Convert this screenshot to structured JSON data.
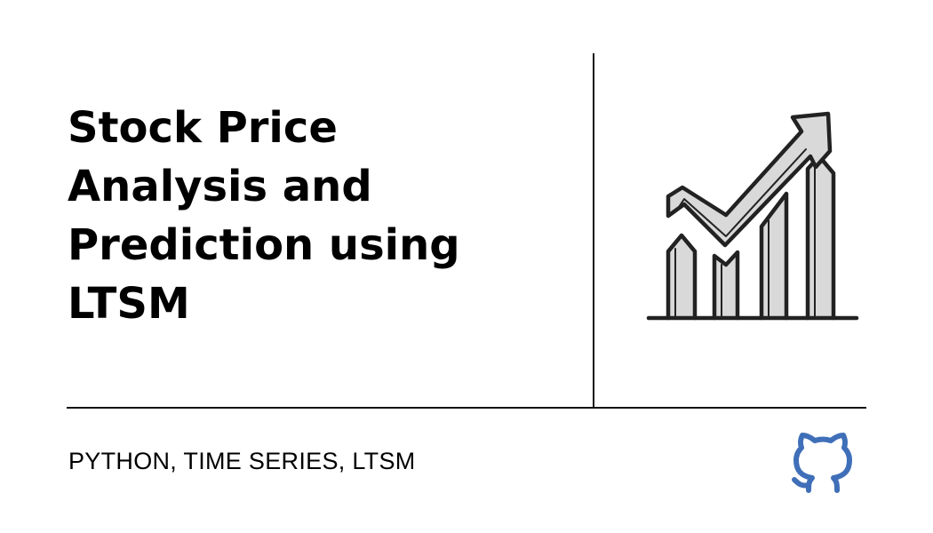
{
  "title": {
    "lines": [
      "Stock Price",
      "Analysis and",
      "Prediction using",
      "LTSM"
    ]
  },
  "tags": "PYTHON, TIME SERIES, LTSM",
  "icons": {
    "illustration": "trending-up-chart-icon",
    "link": "github-icon"
  },
  "colors": {
    "background": "#ffffff",
    "text": "#000000",
    "illustration_fill": "#d9d9d9",
    "github_blue": "#3f6fb8"
  }
}
